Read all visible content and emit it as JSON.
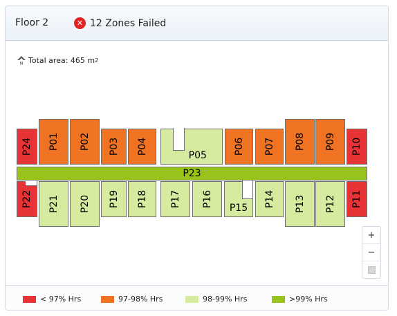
{
  "header": {
    "floor_label": "Floor 2",
    "status_text": "12 Zones Failed",
    "status_icon": "error-x-icon",
    "status_color": "#e02424"
  },
  "area": {
    "prefix": "Total area: 465 m",
    "superscript": "2",
    "north_icon": "north-arrow-icon"
  },
  "rooms": [
    {
      "id": "P24",
      "color": "#e73336"
    },
    {
      "id": "P01",
      "color": "#f07323"
    },
    {
      "id": "P02",
      "color": "#f07323"
    },
    {
      "id": "P03",
      "color": "#f07323"
    },
    {
      "id": "P04",
      "color": "#f07323"
    },
    {
      "id": "P05",
      "color": "#d6eaa0"
    },
    {
      "id": "P06",
      "color": "#f07323"
    },
    {
      "id": "P07",
      "color": "#f07323"
    },
    {
      "id": "P08",
      "color": "#f07323"
    },
    {
      "id": "P09",
      "color": "#f07323"
    },
    {
      "id": "P10",
      "color": "#e73336"
    },
    {
      "id": "P23",
      "color": "#97c31a"
    },
    {
      "id": "P22",
      "color": "#e73336"
    },
    {
      "id": "P21",
      "color": "#d6eaa0"
    },
    {
      "id": "P20",
      "color": "#d6eaa0"
    },
    {
      "id": "P19",
      "color": "#d6eaa0"
    },
    {
      "id": "P18",
      "color": "#d6eaa0"
    },
    {
      "id": "P17",
      "color": "#d6eaa0"
    },
    {
      "id": "P16",
      "color": "#d6eaa0"
    },
    {
      "id": "P15",
      "color": "#d6eaa0"
    },
    {
      "id": "P14",
      "color": "#d6eaa0"
    },
    {
      "id": "P13",
      "color": "#d6eaa0"
    },
    {
      "id": "P12",
      "color": "#d6eaa0"
    },
    {
      "id": "P11",
      "color": "#e73336"
    }
  ],
  "zoom": {
    "plus": "+",
    "minus": "−",
    "reset_icon": "reset-square-icon"
  },
  "legend": [
    {
      "label": "< 97% Hrs",
      "color": "#e73336"
    },
    {
      "label": "97-98% Hrs",
      "color": "#f07323"
    },
    {
      "label": "98-99% Hrs",
      "color": "#d6eaa0"
    },
    {
      "label": ">99% Hrs",
      "color": "#97c31a"
    }
  ]
}
